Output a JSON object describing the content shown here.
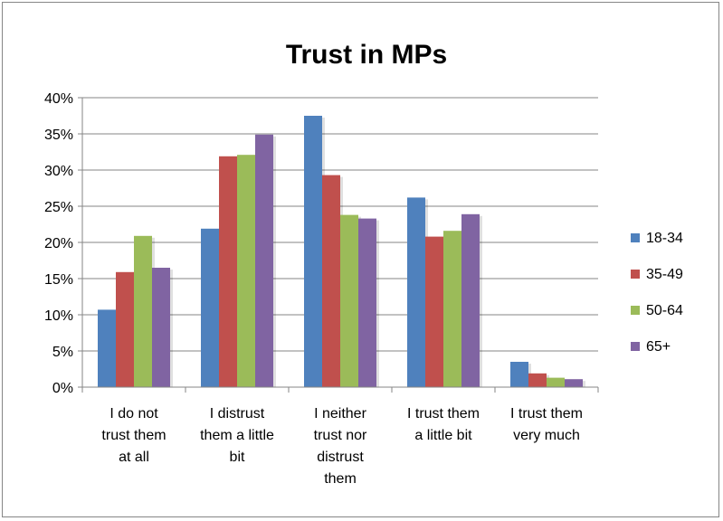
{
  "chart_data": {
    "type": "bar",
    "title": "Trust in MPs",
    "categories": [
      [
        "I do not",
        "trust them",
        "at all"
      ],
      [
        "I distrust",
        "them a little",
        "bit"
      ],
      [
        "I neither",
        "trust nor",
        "distrust",
        "them"
      ],
      [
        "I trust them",
        "a little bit"
      ],
      [
        "I trust them",
        "very much"
      ]
    ],
    "series": [
      {
        "name": "18-34",
        "color": "#4F81BD",
        "values": [
          10.7,
          21.9,
          37.5,
          26.2,
          3.5
        ]
      },
      {
        "name": "35-49",
        "color": "#C0504D",
        "values": [
          15.9,
          31.9,
          29.3,
          20.8,
          1.9
        ]
      },
      {
        "name": "50-64",
        "color": "#9BBB59",
        "values": [
          20.9,
          32.1,
          23.8,
          21.6,
          1.3
        ]
      },
      {
        "name": "65+",
        "color": "#8064A2",
        "values": [
          16.5,
          34.9,
          23.3,
          23.9,
          1.1
        ]
      }
    ],
    "ylim": [
      0,
      40
    ],
    "yticks": [
      "0%",
      "5%",
      "10%",
      "15%",
      "20%",
      "25%",
      "30%",
      "35%",
      "40%"
    ],
    "ytick_values": [
      0,
      5,
      10,
      15,
      20,
      25,
      30,
      35,
      40
    ],
    "grid": true,
    "legend": "right",
    "xlabel": "",
    "ylabel": ""
  }
}
